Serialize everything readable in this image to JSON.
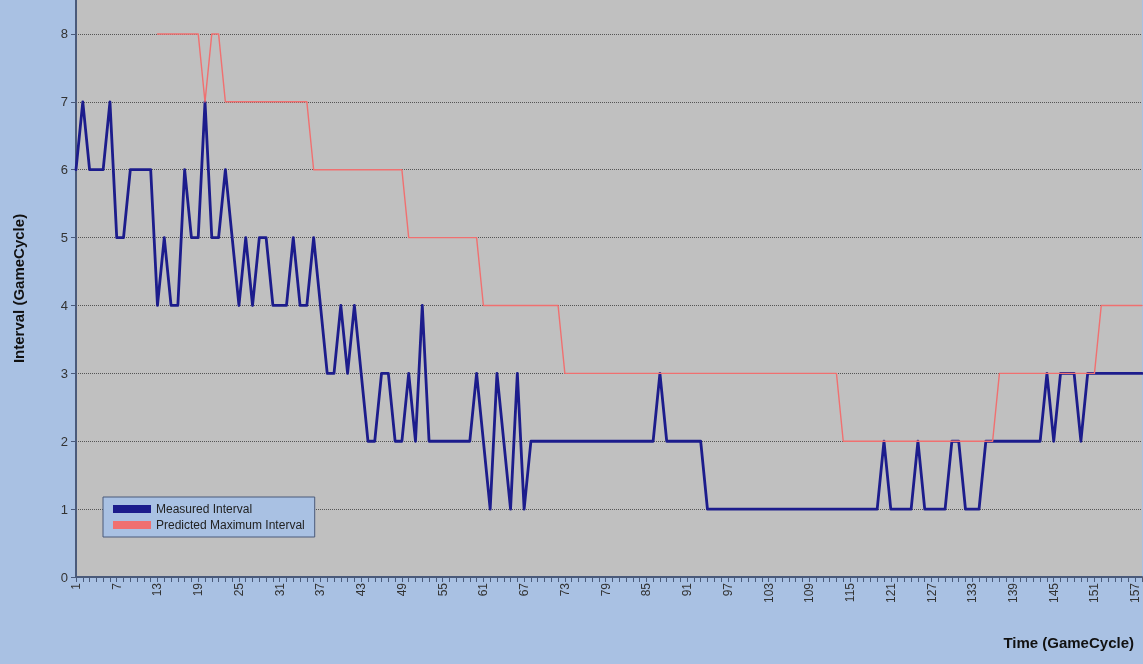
{
  "chart_data": {
    "type": "line",
    "xlabel": "Time (GameCycle)",
    "ylabel": "Interval (GameCycle)",
    "categories": [
      "1",
      null,
      null,
      null,
      null,
      null,
      "7",
      null,
      null,
      null,
      null,
      null,
      "13",
      null,
      null,
      null,
      null,
      null,
      "19",
      null,
      null,
      null,
      null,
      null,
      "25",
      null,
      null,
      null,
      null,
      null,
      "31",
      null,
      null,
      null,
      null,
      null,
      "37",
      null,
      null,
      null,
      null,
      null,
      "43",
      null,
      null,
      null,
      null,
      null,
      "49",
      null,
      null,
      null,
      null,
      null,
      "55",
      null,
      null,
      null,
      null,
      null,
      "61",
      null,
      null,
      null,
      null,
      null,
      "67",
      null,
      null,
      null,
      null,
      null,
      "73",
      null,
      null,
      null,
      null,
      null,
      "79",
      null,
      null,
      null,
      null,
      null,
      "85",
      null,
      null,
      null,
      null,
      null,
      "91",
      null,
      null,
      null,
      null,
      null,
      "97",
      null,
      null,
      null,
      null,
      null,
      "103",
      null,
      null,
      null,
      null,
      null,
      "109",
      null,
      null,
      null,
      null,
      null,
      "115",
      null,
      null,
      null,
      null,
      null,
      "121",
      null,
      null,
      null,
      null,
      null,
      "127",
      null,
      null,
      null,
      null,
      null,
      "133",
      null,
      null,
      null,
      null,
      null,
      "139",
      null,
      null,
      null,
      null,
      null,
      "145",
      null,
      null,
      null,
      null,
      null,
      "151",
      null,
      null,
      null,
      null,
      null,
      "157",
      null
    ],
    "series": [
      {
        "name": "Measured Interval",
        "color": "#1c1c8c",
        "values": [
          6,
          7,
          6,
          6,
          6,
          7,
          5,
          5,
          6,
          6,
          6,
          6,
          4,
          5,
          4,
          4,
          6,
          5,
          5,
          7,
          5,
          5,
          6,
          5,
          4,
          5,
          4,
          5,
          5,
          4,
          4,
          4,
          5,
          4,
          4,
          5,
          4,
          3,
          3,
          4,
          3,
          4,
          3,
          2,
          2,
          3,
          3,
          2,
          2,
          3,
          2,
          4,
          2,
          2,
          2,
          2,
          2,
          2,
          2,
          3,
          2,
          1,
          3,
          2,
          1,
          3,
          1,
          2,
          2,
          2,
          2,
          2,
          2,
          2,
          2,
          2,
          2,
          2,
          2,
          2,
          2,
          2,
          2,
          2,
          2,
          2,
          3,
          2,
          2,
          2,
          2,
          2,
          2,
          1,
          1,
          1,
          1,
          1,
          1,
          1,
          1,
          1,
          1,
          1,
          1,
          1,
          1,
          1,
          1,
          1,
          1,
          1,
          1,
          1,
          1,
          1,
          1,
          1,
          1,
          2,
          1,
          1,
          1,
          1,
          2,
          1,
          1,
          1,
          1,
          2,
          2,
          1,
          1,
          1,
          2,
          2,
          2,
          2,
          2,
          2,
          2,
          2,
          2,
          3,
          2,
          3,
          3,
          3,
          2,
          3,
          3,
          3,
          3,
          3,
          3,
          3,
          3,
          3
        ]
      },
      {
        "name": "Predicted Maximum Interval",
        "color": "#f07070",
        "values": [
          null,
          null,
          null,
          null,
          null,
          null,
          null,
          null,
          null,
          null,
          null,
          null,
          8,
          8,
          8,
          8,
          8,
          8,
          8,
          7,
          8,
          8,
          7,
          7,
          7,
          7,
          7,
          7,
          7,
          7,
          7,
          7,
          7,
          7,
          7,
          6,
          6,
          6,
          6,
          6,
          6,
          6,
          6,
          6,
          6,
          6,
          6,
          6,
          6,
          5,
          5,
          5,
          5,
          5,
          5,
          5,
          5,
          5,
          5,
          5,
          4,
          4,
          4,
          4,
          4,
          4,
          4,
          4,
          4,
          4,
          4,
          4,
          3,
          3,
          3,
          3,
          3,
          3,
          3,
          3,
          3,
          3,
          3,
          3,
          3,
          3,
          3,
          3,
          3,
          3,
          3,
          3,
          3,
          3,
          3,
          3,
          3,
          3,
          3,
          3,
          3,
          3,
          3,
          3,
          3,
          3,
          3,
          3,
          3,
          3,
          3,
          3,
          3,
          2,
          2,
          2,
          2,
          2,
          2,
          2,
          2,
          2,
          2,
          2,
          2,
          2,
          2,
          2,
          2,
          2,
          2,
          2,
          2,
          2,
          2,
          2,
          3,
          3,
          3,
          3,
          3,
          3,
          3,
          3,
          3,
          3,
          3,
          3,
          3,
          3,
          3,
          4,
          4,
          4,
          4,
          4,
          4,
          4
        ]
      }
    ],
    "ylim": [
      0,
      8.5
    ],
    "yticks": [
      0,
      1,
      2,
      3,
      4,
      5,
      6,
      7,
      8
    ],
    "grid": "y",
    "legend": "bottom left",
    "marker": "none",
    "line_style": "solid"
  }
}
